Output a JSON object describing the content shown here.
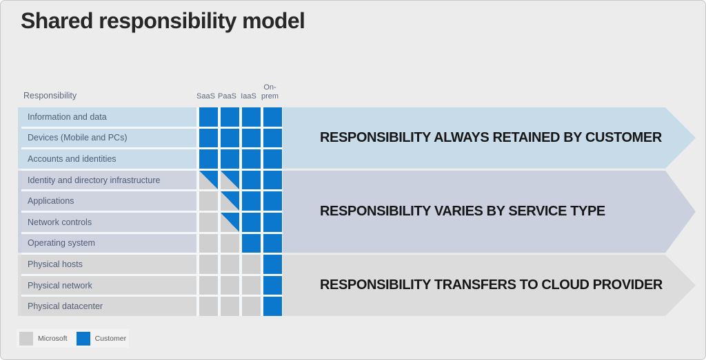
{
  "title": "Shared responsibility model",
  "table": {
    "header_label": "Responsibility",
    "columns": [
      "SaaS",
      "PaaS",
      "IaaS",
      "On-prem"
    ],
    "rows": [
      {
        "label": "Information and data",
        "cells": [
          "customer",
          "customer",
          "customer",
          "customer"
        ]
      },
      {
        "label": "Devices (Mobile and PCs)",
        "cells": [
          "customer",
          "customer",
          "customer",
          "customer"
        ]
      },
      {
        "label": "Accounts and identities",
        "cells": [
          "customer",
          "customer",
          "customer",
          "customer"
        ]
      },
      {
        "label": "Identity and directory infrastructure",
        "cells": [
          "shared",
          "shared",
          "customer",
          "customer"
        ]
      },
      {
        "label": "Applications",
        "cells": [
          "microsoft",
          "shared",
          "customer",
          "customer"
        ]
      },
      {
        "label": "Network controls",
        "cells": [
          "microsoft",
          "shared",
          "customer",
          "customer"
        ]
      },
      {
        "label": "Operating system",
        "cells": [
          "microsoft",
          "microsoft",
          "customer",
          "customer"
        ]
      },
      {
        "label": "Physical hosts",
        "cells": [
          "microsoft",
          "microsoft",
          "microsoft",
          "customer"
        ]
      },
      {
        "label": "Physical network",
        "cells": [
          "microsoft",
          "microsoft",
          "microsoft",
          "customer"
        ]
      },
      {
        "label": "Physical datacenter",
        "cells": [
          "microsoft",
          "microsoft",
          "microsoft",
          "customer"
        ]
      }
    ]
  },
  "bands": [
    {
      "label": "RESPONSIBILITY ALWAYS RETAINED BY CUSTOMER",
      "color": "#c8dbe9",
      "row_color": "#c9dce9",
      "row_count": 3
    },
    {
      "label": "RESPONSIBILITY VARIES BY SERVICE TYPE",
      "color": "#cad0dd",
      "row_color": "#ced3df",
      "row_count": 4
    },
    {
      "label": "RESPONSIBILITY TRANSFERS TO CLOUD PROVIDER",
      "color": "#dcdcdc",
      "row_color": "#d8d8d8",
      "row_count": 3
    }
  ],
  "legend": {
    "items": [
      {
        "label": "Microsoft",
        "color": "#cfcfcf"
      },
      {
        "label": "Customer",
        "color": "#0b78cd"
      }
    ]
  },
  "colors": {
    "customer": "#0b78cd",
    "microsoft": "#cfcfcf",
    "page_background": "#ececec"
  }
}
